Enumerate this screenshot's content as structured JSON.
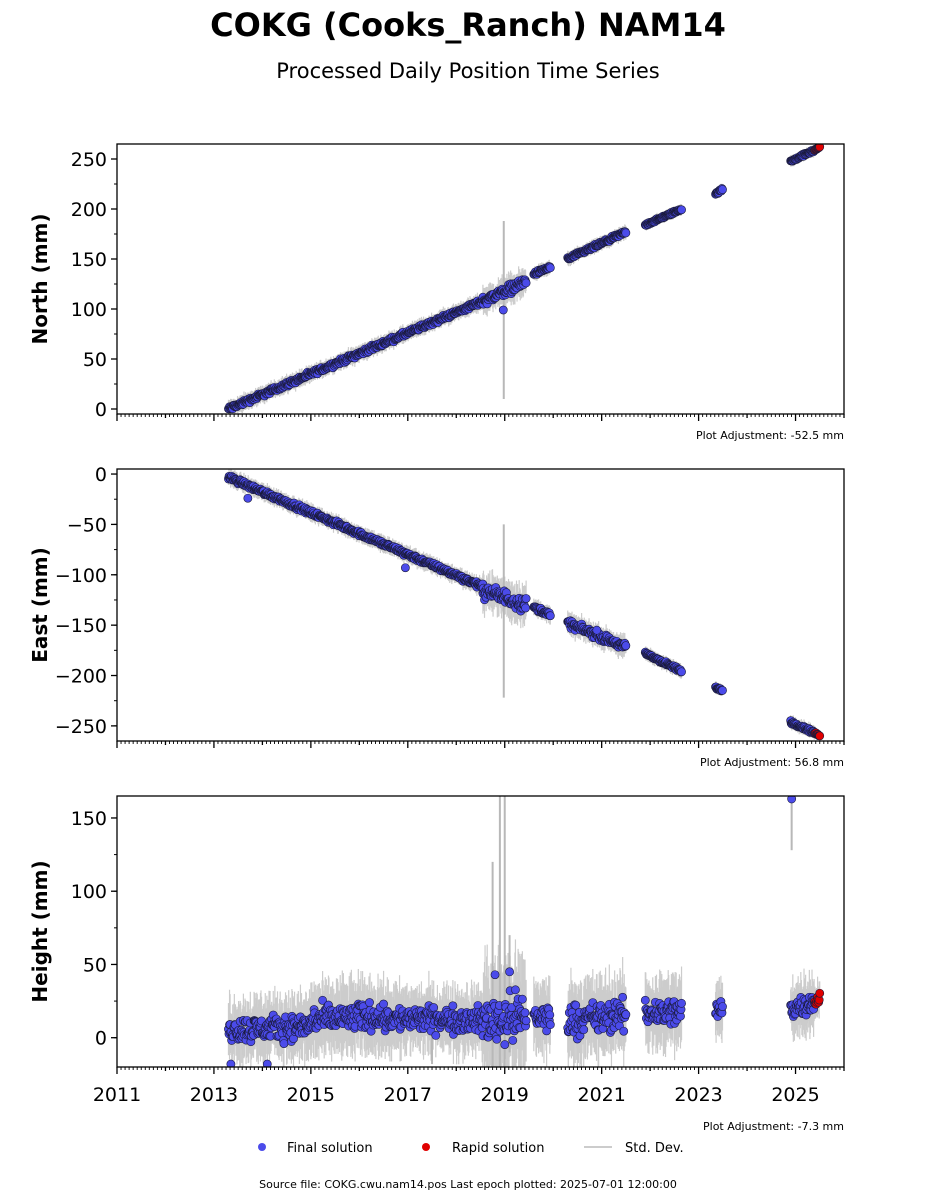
{
  "title": "COKG (Cooks_Ranch) NAM14",
  "subtitle": "Processed Daily Position Time Series",
  "footer": "Source file: COKG.cwu.nam14.pos  Last epoch plotted: 2025-07-01 12:00:00",
  "colors": {
    "final": "#4b4bea",
    "rapid": "#e00000",
    "stddev": "#cccccc",
    "marker_edge": "#1a1a3a"
  },
  "legend": {
    "placement": "bottom-center",
    "items": [
      {
        "label": "Final solution",
        "kind": "final"
      },
      {
        "label": "Rapid solution",
        "kind": "rapid"
      },
      {
        "label": "Std. Dev.",
        "kind": "stddev"
      }
    ]
  },
  "chart_data": [
    {
      "type": "scatter",
      "ylabel": "North (mm)",
      "xlabel": "",
      "xlim": [
        2011,
        2026
      ],
      "ylim": [
        -5,
        265
      ],
      "yticks": [
        0,
        50,
        100,
        150,
        200,
        250
      ],
      "xticks": [
        2011,
        2013,
        2015,
        2017,
        2019,
        2021,
        2023,
        2025
      ],
      "show_xticklabels": false,
      "adjustment": "Plot Adjustment: -52.5 mm",
      "outliers": [
        {
          "x": 2018.97,
          "y": 99
        }
      ],
      "stddev_spikes": [
        {
          "x": 2018.98,
          "low": 10,
          "high": 188
        }
      ],
      "series": [
        {
          "kind": "final",
          "segments": [
            {
              "x": [
                2013.3,
                2018.55
              ],
              "y": [
                0,
                108
              ],
              "noise": 2
            },
            {
              "x": [
                2018.55,
                2019.45
              ],
              "y": [
                108,
                128
              ],
              "noise": 4
            },
            {
              "x": [
                2019.6,
                2019.95
              ],
              "y": [
                135,
                142
              ],
              "noise": 1.5
            },
            {
              "x": [
                2020.3,
                2021.5
              ],
              "y": [
                150,
                177
              ],
              "noise": 1.5
            },
            {
              "x": [
                2021.9,
                2022.65
              ],
              "y": [
                184,
                200
              ],
              "noise": 1
            },
            {
              "x": [
                2023.35,
                2023.5
              ],
              "y": [
                215,
                220
              ],
              "noise": 1
            },
            {
              "x": [
                2024.9,
                2025.4
              ],
              "y": [
                248,
                259
              ],
              "noise": 1
            }
          ]
        },
        {
          "kind": "rapid",
          "segments": [
            {
              "x": [
                2025.4,
                2025.5
              ],
              "y": [
                259,
                262
              ],
              "noise": 0.5
            }
          ]
        }
      ]
    },
    {
      "type": "scatter",
      "ylabel": "East (mm)",
      "xlabel": "",
      "xlim": [
        2011,
        2026
      ],
      "ylim": [
        -265,
        5
      ],
      "yticks": [
        0,
        -50,
        -100,
        -150,
        -200,
        -250
      ],
      "xticks": [
        2011,
        2013,
        2015,
        2017,
        2019,
        2021,
        2023,
        2025
      ],
      "show_xticklabels": false,
      "adjustment": "Plot Adjustment: 56.8 mm",
      "outliers": [
        {
          "x": 2013.7,
          "y": -24
        },
        {
          "x": 2016.95,
          "y": -93
        },
        {
          "x": 2020.9,
          "y": -155
        }
      ],
      "stddev_spikes": [
        {
          "x": 2018.98,
          "low": -222,
          "high": -50
        }
      ],
      "series": [
        {
          "kind": "final",
          "segments": [
            {
              "x": [
                2013.3,
                2018.55
              ],
              "y": [
                -3,
                -112
              ],
              "noise": 2
            },
            {
              "x": [
                2018.55,
                2019.45
              ],
              "y": [
                -115,
                -130
              ],
              "noise": 6
            },
            {
              "x": [
                2019.6,
                2019.95
              ],
              "y": [
                -132,
                -140
              ],
              "noise": 2
            },
            {
              "x": [
                2020.3,
                2021.5
              ],
              "y": [
                -148,
                -172
              ],
              "noise": 3
            },
            {
              "x": [
                2021.9,
                2022.65
              ],
              "y": [
                -178,
                -196
              ],
              "noise": 1.5
            },
            {
              "x": [
                2023.35,
                2023.5
              ],
              "y": [
                -212,
                -215
              ],
              "noise": 1
            },
            {
              "x": [
                2024.9,
                2025.4
              ],
              "y": [
                -246,
                -257
              ],
              "noise": 1.5
            }
          ]
        },
        {
          "kind": "rapid",
          "segments": [
            {
              "x": [
                2025.4,
                2025.5
              ],
              "y": [
                -257,
                -260
              ],
              "noise": 0.5
            }
          ]
        }
      ]
    },
    {
      "type": "scatter",
      "ylabel": "Height (mm)",
      "xlabel": "",
      "xlim": [
        2011,
        2026
      ],
      "ylim": [
        -20,
        165
      ],
      "yticks": [
        0,
        50,
        100,
        150
      ],
      "xticks": [
        2011,
        2013,
        2015,
        2017,
        2019,
        2021,
        2023,
        2025
      ],
      "xticklabels": [
        "2011",
        "2013",
        "2015",
        "2017",
        "2019",
        "2021",
        "2023",
        "2025"
      ],
      "show_xticklabels": true,
      "adjustment": "Plot Adjustment: -7.3 mm",
      "outliers": [
        {
          "x": 2024.92,
          "y": 163
        },
        {
          "x": 2019.1,
          "y": 45
        },
        {
          "x": 2018.8,
          "y": 43
        },
        {
          "x": 2013.35,
          "y": -18
        },
        {
          "x": 2014.1,
          "y": -18
        }
      ],
      "stddev_spikes": [
        {
          "x": 2018.75,
          "low": -20,
          "high": 120
        },
        {
          "x": 2018.9,
          "low": -20,
          "high": 165
        },
        {
          "x": 2019.0,
          "low": -20,
          "high": 165
        },
        {
          "x": 2019.1,
          "low": -10,
          "high": 70
        },
        {
          "x": 2024.92,
          "low": 128,
          "high": 165
        },
        {
          "x": 2017.5,
          "low": -18,
          "high": 20
        }
      ],
      "series": [
        {
          "kind": "final",
          "segments": [
            {
              "x": [
                2013.3,
                2015.0
              ],
              "y": [
                5,
                8
              ],
              "noise": 7
            },
            {
              "x": [
                2015.0,
                2016.5
              ],
              "y": [
                12,
                15
              ],
              "noise": 8
            },
            {
              "x": [
                2016.5,
                2018.55
              ],
              "y": [
                13,
                12
              ],
              "noise": 7
            },
            {
              "x": [
                2018.55,
                2019.45
              ],
              "y": [
                12,
                14
              ],
              "noise": 14
            },
            {
              "x": [
                2019.6,
                2019.95
              ],
              "y": [
                15,
                13
              ],
              "noise": 8
            },
            {
              "x": [
                2020.3,
                2021.5
              ],
              "y": [
                12,
                15
              ],
              "noise": 9
            },
            {
              "x": [
                2021.9,
                2022.65
              ],
              "y": [
                17,
                18
              ],
              "noise": 8
            },
            {
              "x": [
                2023.35,
                2023.5
              ],
              "y": [
                18,
                20
              ],
              "noise": 6
            },
            {
              "x": [
                2024.9,
                2025.4
              ],
              "y": [
                20,
                25
              ],
              "noise": 6
            }
          ]
        },
        {
          "kind": "rapid",
          "segments": [
            {
              "x": [
                2025.4,
                2025.5
              ],
              "y": [
                22,
                28
              ],
              "noise": 4
            }
          ]
        }
      ]
    }
  ]
}
